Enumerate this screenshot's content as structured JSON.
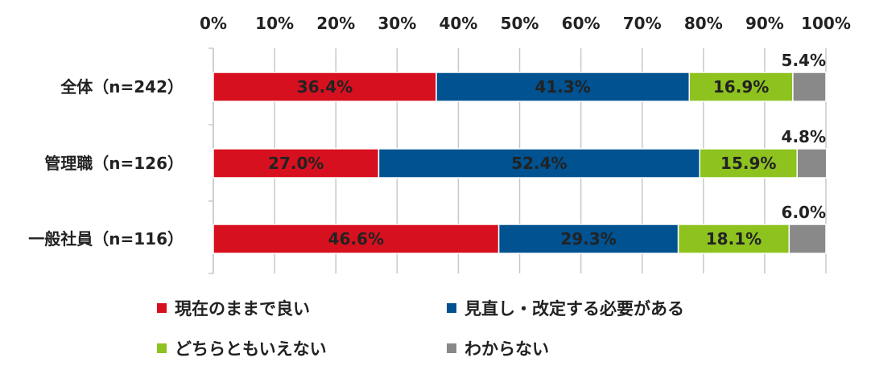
{
  "chart_data": {
    "type": "bar",
    "orientation": "horizontal",
    "stacked": "percent",
    "categories": [
      "全体（n=242）",
      "管理職（n=126）",
      "一般社員（n=116）"
    ],
    "series": [
      {
        "name": "現在のままで良い",
        "color": "#d7101f",
        "values": [
          36.4,
          27.0,
          46.6
        ],
        "labels": [
          "36.4%",
          "27.0%",
          "46.6%"
        ]
      },
      {
        "name": "見直し・改定する必要がある",
        "color": "#005291",
        "values": [
          41.3,
          52.4,
          29.3
        ],
        "labels": [
          "41.3%",
          "52.4%",
          "29.3%"
        ]
      },
      {
        "name": "どちらともいえない",
        "color": "#8dc21f",
        "values": [
          16.9,
          15.9,
          18.1
        ],
        "labels": [
          "16.9%",
          "15.9%",
          "18.1%"
        ]
      },
      {
        "name": "わからない",
        "color": "#898989",
        "values": [
          5.4,
          4.8,
          6.0
        ],
        "labels": [
          "5.4%",
          "4.8%",
          "6.0%"
        ]
      }
    ],
    "xlim": [
      0,
      100
    ],
    "xticks": [
      "0%",
      "10%",
      "20%",
      "30%",
      "40%",
      "50%",
      "60%",
      "70%",
      "80%",
      "90%",
      "100%"
    ],
    "grid": true,
    "legend_position": "bottom"
  }
}
